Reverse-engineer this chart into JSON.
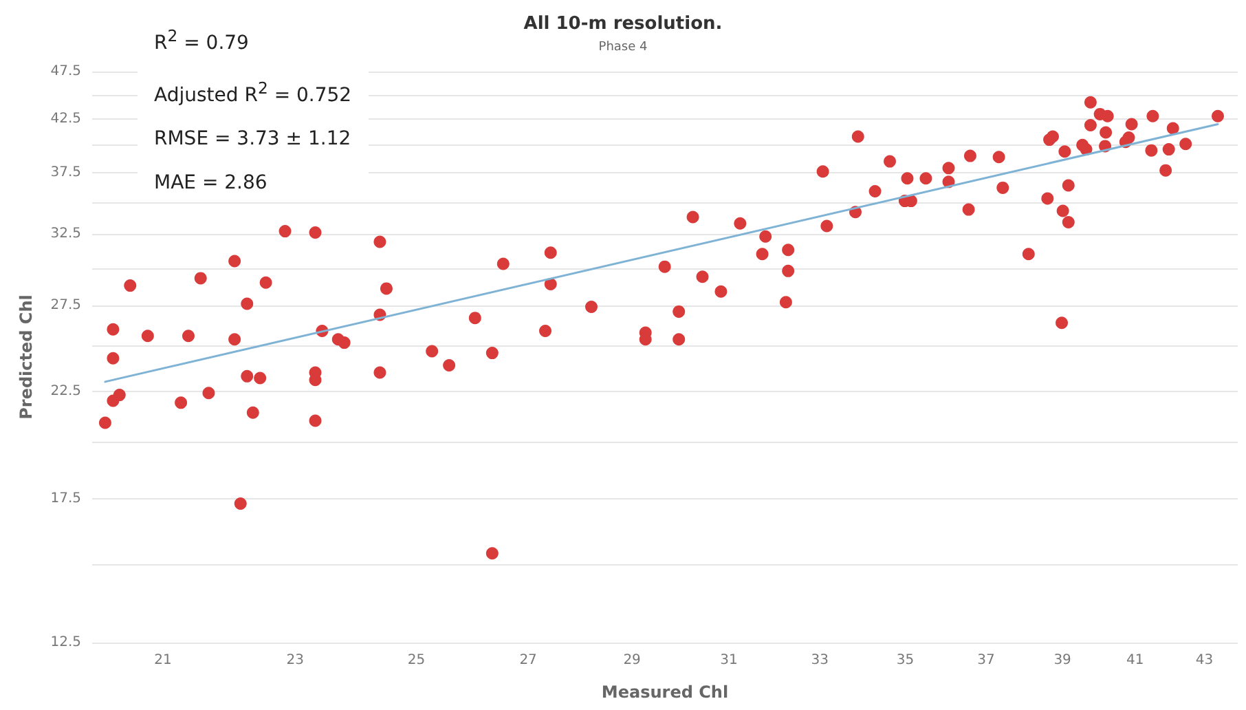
{
  "chart_data": {
    "type": "scatter",
    "title": "All 10-m resolution.",
    "subtitle": "Phase 4",
    "xlabel": "Measured Chl",
    "ylabel": "Predicted Chl",
    "annotations": [
      "R$^{2}$ = 0.79",
      "Adjusted R$^{2}$ = 0.752",
      "RMSE = 3.73 ± 1.12",
      "MAE = 2.86"
    ],
    "log": "xy",
    "grid": "y",
    "marker": "circle",
    "xlim": [
      20,
      44
    ],
    "xticks": [
      21,
      23,
      25,
      27,
      29,
      31,
      33,
      35,
      37,
      39,
      41,
      43
    ],
    "ylim": [
      12.5,
      47.5
    ],
    "yticks": [
      12.5,
      {
        "value": 15,
        "label": null
      },
      17.5,
      {
        "value": 20,
        "label": null
      },
      22.5,
      {
        "value": 25,
        "label": null
      },
      27.5,
      {
        "value": 30,
        "label": null
      },
      32.5,
      {
        "value": 35,
        "label": null
      },
      37.5,
      {
        "value": 40,
        "label": null
      },
      42.5,
      {
        "value": 45,
        "label": null
      },
      47.5
    ],
    "series": [
      {
        "color": "#d93a3a",
        "x": [
          20.18,
          20.29,
          20.29,
          20.29,
          20.38,
          20.53,
          20.78,
          21.26,
          21.37,
          21.55,
          21.67,
          22.06,
          22.06,
          22.15,
          22.25,
          22.25,
          22.34,
          22.45,
          22.54,
          22.84,
          23.32,
          23.32,
          23.32,
          23.32,
          23.43,
          23.69,
          23.79,
          24.38,
          24.49,
          24.38,
          24.38,
          25.27,
          25.57,
          26.03,
          26.34,
          26.34,
          26.54,
          27.42,
          27.42,
          27.32,
          28.2,
          29.27,
          29.27,
          29.66,
          29.95,
          29.95,
          30.24,
          30.44,
          30.83,
          31.24,
          31.72,
          31.79,
          32.29,
          32.29,
          32.24,
          33.07,
          33.16,
          33.88,
          33.82,
          34.28,
          34.63,
          35.05,
          34.99,
          35.14,
          35.5,
          36.06,
          36.06,
          36.6,
          36.56,
          37.33,
          37.43,
          38.1,
          38.6,
          38.65,
          38.74,
          39.06,
          39.16,
          39.01,
          39.16,
          38.98,
          39.76,
          39.76,
          39.54,
          39.64,
          40.02,
          40.23,
          40.18,
          40.16,
          40.73,
          40.82,
          40.9,
          41.5,
          41.46,
          41.87,
          41.96,
          42.08,
          42.45,
          43.4
        ],
        "values": [
          20.9,
          26.0,
          24.3,
          22.0,
          22.3,
          28.8,
          25.6,
          21.9,
          25.6,
          29.3,
          22.4,
          30.5,
          25.4,
          17.3,
          27.6,
          23.3,
          21.4,
          23.2,
          29.0,
          32.7,
          32.6,
          23.5,
          23.1,
          21.0,
          25.9,
          25.4,
          25.2,
          31.9,
          28.6,
          26.9,
          23.5,
          24.7,
          23.9,
          26.7,
          24.6,
          15.4,
          30.3,
          31.1,
          28.9,
          25.9,
          27.4,
          25.8,
          25.4,
          30.1,
          27.1,
          25.4,
          33.8,
          29.4,
          28.4,
          33.3,
          31.0,
          32.3,
          31.3,
          29.8,
          27.7,
          37.6,
          33.1,
          40.8,
          34.2,
          35.9,
          38.5,
          37.0,
          35.1,
          35.1,
          37.0,
          37.9,
          36.7,
          39.0,
          34.4,
          38.9,
          36.2,
          31.0,
          35.3,
          40.5,
          40.8,
          39.4,
          36.4,
          34.3,
          33.4,
          26.4,
          44.2,
          41.9,
          40.0,
          39.6,
          43.0,
          42.8,
          41.2,
          39.9,
          40.3,
          40.7,
          42.0,
          42.8,
          39.5,
          37.7,
          39.6,
          41.6,
          40.1,
          42.8
        ]
      },
      {
        "type": "line",
        "color": "#7fb3d5",
        "marker": "none",
        "line_style": "solid",
        "x": [
          20.18,
          43.4
        ],
        "values": [
          23.0,
          42.0
        ]
      }
    ]
  }
}
